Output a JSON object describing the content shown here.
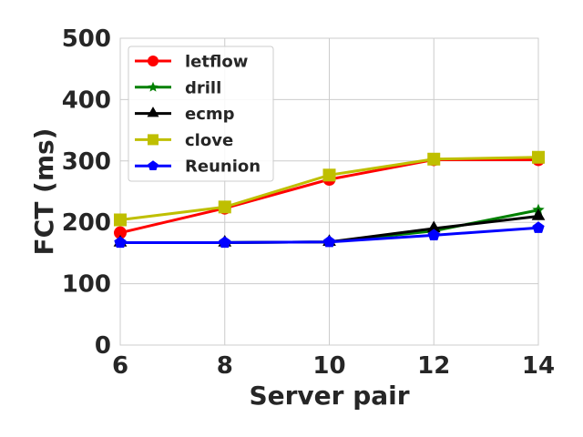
{
  "chart_data": {
    "type": "line",
    "xlabel": "Server pair",
    "ylabel": "FCT (ms)",
    "x": [
      6,
      8,
      10,
      12,
      14
    ],
    "xlim": [
      6,
      14
    ],
    "ylim": [
      0,
      500
    ],
    "x_ticks": [
      "6",
      "8",
      "10",
      "12",
      "14"
    ],
    "y_ticks": [
      "0",
      "100",
      "200",
      "300",
      "400",
      "500"
    ],
    "grid": true,
    "legend_position": "top-left",
    "series": [
      {
        "name": "letflow",
        "color": "#ff0000",
        "marker": "circle",
        "values": [
          183,
          223,
          270,
          302,
          302
        ]
      },
      {
        "name": "drill",
        "color": "#008000",
        "marker": "star",
        "values": [
          167,
          167,
          168,
          186,
          220
        ]
      },
      {
        "name": "ecmp",
        "color": "#000000",
        "marker": "triangle",
        "values": [
          167,
          167,
          168,
          190,
          210
        ]
      },
      {
        "name": "clove",
        "color": "#bfbf00",
        "marker": "square",
        "values": [
          204,
          225,
          277,
          303,
          306
        ]
      },
      {
        "name": "Reunion",
        "color": "#0000ff",
        "marker": "pentagon",
        "values": [
          167,
          167,
          168,
          179,
          191
        ]
      }
    ]
  }
}
